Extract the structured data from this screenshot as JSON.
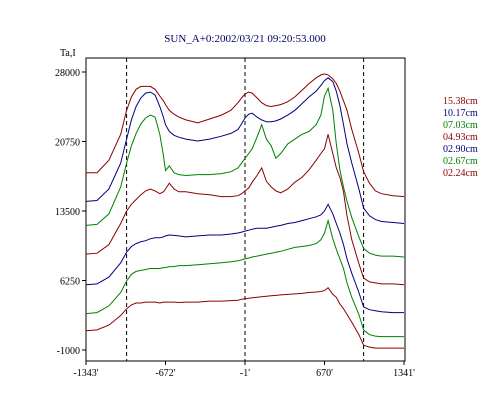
{
  "chart_data": {
    "type": "line",
    "title": "SUN_A+0:2002/03/21 09:20:53.000",
    "ylabel": "Ta,I",
    "xlabel": "",
    "xlim": [
      -1343,
      1341
    ],
    "ylim": [
      -1000,
      28000
    ],
    "x_ticks": [
      "-1343'",
      "-672'",
      "-1'",
      "670'",
      "1341'"
    ],
    "y_ticks": [
      "28000",
      "20750",
      "13500",
      "6250",
      "-1000"
    ],
    "grid": false,
    "marker_lines_x": [
      -1000,
      -1,
      1000
    ],
    "legend_position": "right",
    "colors": {
      "frame": "#000000",
      "title": "#000066",
      "dark_red": "#8b0000",
      "navy": "#00007f",
      "green": "#008000"
    },
    "x": [
      -1343,
      -1250,
      -1150,
      -1050,
      -1000,
      -960,
      -920,
      -880,
      -840,
      -800,
      -760,
      -720,
      -690,
      -672,
      -640,
      -600,
      -560,
      -500,
      -400,
      -300,
      -200,
      -120,
      -60,
      -30,
      -1,
      30,
      60,
      100,
      140,
      180,
      220,
      260,
      300,
      360,
      420,
      480,
      540,
      600,
      640,
      670,
      700,
      740,
      770,
      800,
      830,
      860,
      900,
      960,
      1000,
      1050,
      1100,
      1150,
      1250,
      1341
    ],
    "series": [
      {
        "name": "15.38cm",
        "color": "#8b0000",
        "values": [
          17500,
          17500,
          18800,
          21500,
          24000,
          25400,
          26200,
          26500,
          26500,
          26500,
          26200,
          25500,
          25000,
          24600,
          24000,
          23600,
          23300,
          23000,
          22700,
          23100,
          23500,
          24000,
          24800,
          25300,
          25700,
          25900,
          25800,
          25300,
          24800,
          24500,
          24400,
          24500,
          24600,
          24900,
          25400,
          26100,
          26800,
          27400,
          27700,
          27800,
          27700,
          27300,
          26800,
          26000,
          25000,
          24000,
          22000,
          19500,
          17600,
          16400,
          15600,
          15300,
          15100,
          15000
        ]
      },
      {
        "name": "10.17cm",
        "color": "#00007f",
        "values": [
          14500,
          14600,
          15800,
          18500,
          21000,
          23000,
          24400,
          25300,
          25800,
          25900,
          25600,
          24400,
          23300,
          22500,
          21800,
          21400,
          21200,
          21000,
          20800,
          21000,
          21300,
          21600,
          22000,
          22600,
          23200,
          23600,
          23700,
          23300,
          23000,
          22800,
          22800,
          22900,
          23100,
          23500,
          24000,
          24700,
          25400,
          26000,
          26600,
          27100,
          27400,
          27000,
          26000,
          24500,
          22500,
          20500,
          18500,
          15800,
          13800,
          13000,
          12600,
          12400,
          12300,
          12200
        ]
      },
      {
        "name": "07.03cm",
        "color": "#008000",
        "values": [
          12000,
          12100,
          13200,
          16000,
          18500,
          20300,
          21600,
          22600,
          23200,
          23500,
          23300,
          21500,
          19300,
          17700,
          18200,
          17500,
          17300,
          17200,
          17300,
          17300,
          17400,
          17600,
          18000,
          18500,
          19000,
          19500,
          20000,
          21200,
          22500,
          21000,
          20300,
          19000,
          19500,
          20500,
          21000,
          21500,
          21800,
          22500,
          23500,
          25500,
          26300,
          24000,
          20500,
          17800,
          16000,
          14500,
          12800,
          10800,
          9600,
          9100,
          8900,
          8800,
          8800,
          8700
        ]
      },
      {
        "name": "04.93cm",
        "color": "#8b0000",
        "values": [
          9000,
          9100,
          10000,
          12200,
          13500,
          14200,
          14700,
          15200,
          15600,
          15800,
          15600,
          15300,
          15500,
          15800,
          16400,
          15800,
          15500,
          15500,
          15300,
          15200,
          15000,
          15000,
          15100,
          15300,
          15600,
          15900,
          16500,
          17200,
          18000,
          16600,
          16000,
          15600,
          15400,
          15800,
          16500,
          17000,
          17800,
          18800,
          19500,
          20000,
          21500,
          19500,
          18000,
          17000,
          15500,
          13000,
          10500,
          8000,
          6500,
          6100,
          6000,
          5900,
          5900,
          5800
        ]
      },
      {
        "name": "02.90cm",
        "color": "#00007f",
        "values": [
          5800,
          5900,
          6600,
          8100,
          9200,
          9800,
          10100,
          10300,
          10400,
          10600,
          10700,
          10700,
          10800,
          10900,
          11000,
          10950,
          10900,
          10800,
          10900,
          11000,
          11000,
          11100,
          11200,
          11300,
          11400,
          11500,
          11600,
          11700,
          11700,
          11700,
          11800,
          11900,
          12000,
          12200,
          12300,
          12500,
          12700,
          12900,
          13100,
          13500,
          14200,
          13200,
          12200,
          11200,
          10000,
          8500,
          7000,
          5000,
          3500,
          3200,
          3100,
          3000,
          2900,
          2900
        ]
      },
      {
        "name": "02.67cm",
        "color": "#008000",
        "values": [
          2800,
          2900,
          3600,
          5000,
          6200,
          6900,
          7200,
          7300,
          7400,
          7500,
          7500,
          7500,
          7600,
          7600,
          7700,
          7700,
          7800,
          7800,
          7900,
          8000,
          8100,
          8200,
          8300,
          8400,
          8500,
          8600,
          8700,
          8800,
          8900,
          9000,
          9100,
          9200,
          9300,
          9500,
          9700,
          9800,
          9900,
          10100,
          10500,
          11200,
          12500,
          10600,
          9500,
          8500,
          7500,
          6000,
          4500,
          2700,
          1100,
          600,
          450,
          400,
          400,
          400
        ]
      },
      {
        "name": "02.24cm",
        "color": "#8b0000",
        "values": [
          1000,
          1100,
          1600,
          2600,
          3300,
          3700,
          3900,
          3900,
          4000,
          4000,
          4000,
          3900,
          4000,
          4000,
          4000,
          4000,
          3950,
          4000,
          4000,
          4100,
          4100,
          4150,
          4200,
          4300,
          4350,
          4400,
          4450,
          4500,
          4550,
          4600,
          4650,
          4700,
          4750,
          4800,
          4850,
          4900,
          5000,
          5050,
          5100,
          5200,
          5500,
          4800,
          4500,
          3800,
          3300,
          2700,
          1900,
          600,
          -500,
          -700,
          -800,
          -800,
          -800,
          -800
        ]
      }
    ]
  }
}
